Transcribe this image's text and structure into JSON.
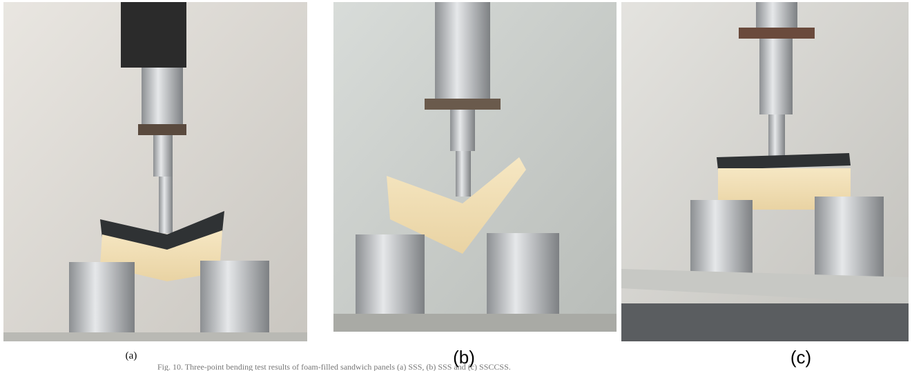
{
  "figure": {
    "panels": [
      {
        "label": "(a)"
      },
      {
        "label": "(b)"
      },
      {
        "label": "(c)"
      }
    ],
    "caption": "Fig. 10. Three-point bending test results of foam-filled sandwich panels (a) SSS, (b) SSS and (c) SSCCSS."
  }
}
